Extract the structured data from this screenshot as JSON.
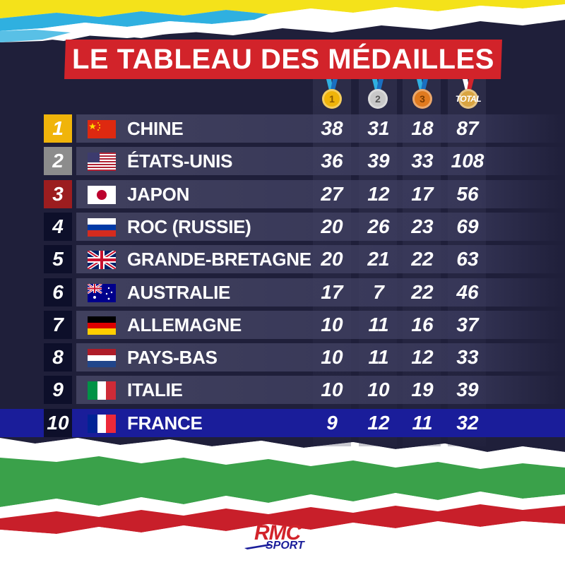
{
  "title": "LE TABLEAU DES MÉDAILLES",
  "columns": {
    "gold_icon": "gold-medal-icon",
    "gold_number": "1",
    "silver_icon": "silver-medal-icon",
    "silver_number": "2",
    "bronze_icon": "bronze-medal-icon",
    "bronze_number": "3",
    "total_icon": "total-medal-icon",
    "total_label": "TOTAL"
  },
  "rows": [
    {
      "rank": "1",
      "country": "CHINE",
      "flag": "china-flag-icon",
      "gold": "38",
      "silver": "31",
      "bronze": "18",
      "total": "87",
      "rank_color": "#f0b40a"
    },
    {
      "rank": "2",
      "country": "ÉTATS-UNIS",
      "flag": "usa-flag-icon",
      "gold": "36",
      "silver": "39",
      "bronze": "33",
      "total": "108",
      "rank_color": "#8c8c8c"
    },
    {
      "rank": "3",
      "country": "JAPON",
      "flag": "japan-flag-icon",
      "gold": "27",
      "silver": "12",
      "bronze": "17",
      "total": "56",
      "rank_color": "#9c1d1f"
    },
    {
      "rank": "4",
      "country": "ROC (RUSSIE)",
      "flag": "russia-flag-icon",
      "gold": "20",
      "silver": "26",
      "bronze": "23",
      "total": "69",
      "rank_color": "#0d0f2a"
    },
    {
      "rank": "5",
      "country": "GRANDE-BRETAGNE",
      "flag": "uk-flag-icon",
      "gold": "20",
      "silver": "21",
      "bronze": "22",
      "total": "63",
      "rank_color": "#0d0f2a"
    },
    {
      "rank": "6",
      "country": "AUSTRALIE",
      "flag": "australia-flag-icon",
      "gold": "17",
      "silver": "7",
      "bronze": "22",
      "total": "46",
      "rank_color": "#0d0f2a"
    },
    {
      "rank": "7",
      "country": "ALLEMAGNE",
      "flag": "germany-flag-icon",
      "gold": "10",
      "silver": "11",
      "bronze": "16",
      "total": "37",
      "rank_color": "#0d0f2a"
    },
    {
      "rank": "8",
      "country": "PAYS-BAS",
      "flag": "netherlands-flag-icon",
      "gold": "10",
      "silver": "11",
      "bronze": "12",
      "total": "33",
      "rank_color": "#0d0f2a"
    },
    {
      "rank": "9",
      "country": "ITALIE",
      "flag": "italy-flag-icon",
      "gold": "10",
      "silver": "10",
      "bronze": "19",
      "total": "39",
      "rank_color": "#0d0f2a"
    },
    {
      "rank": "10",
      "country": "FRANCE",
      "flag": "france-flag-icon",
      "gold": "9",
      "silver": "12",
      "bronze": "11",
      "total": "32",
      "rank_color": "#0d0f2a",
      "highlight": true
    }
  ],
  "logo": {
    "brand": "RMC",
    "sub": "SPORT"
  },
  "colors": {
    "background": "#1f1f3a",
    "title_banner": "#d2232a",
    "highlight_row": "#1a1d9a",
    "gold": "#f0b40a",
    "silver": "#b8b8b8",
    "bronze": "#e07a1f",
    "stripe_yellow": "#f4e21a",
    "stripe_blue": "#2fb0e0",
    "stripe_green": "#3aa14a",
    "stripe_red": "#c81f2a"
  }
}
